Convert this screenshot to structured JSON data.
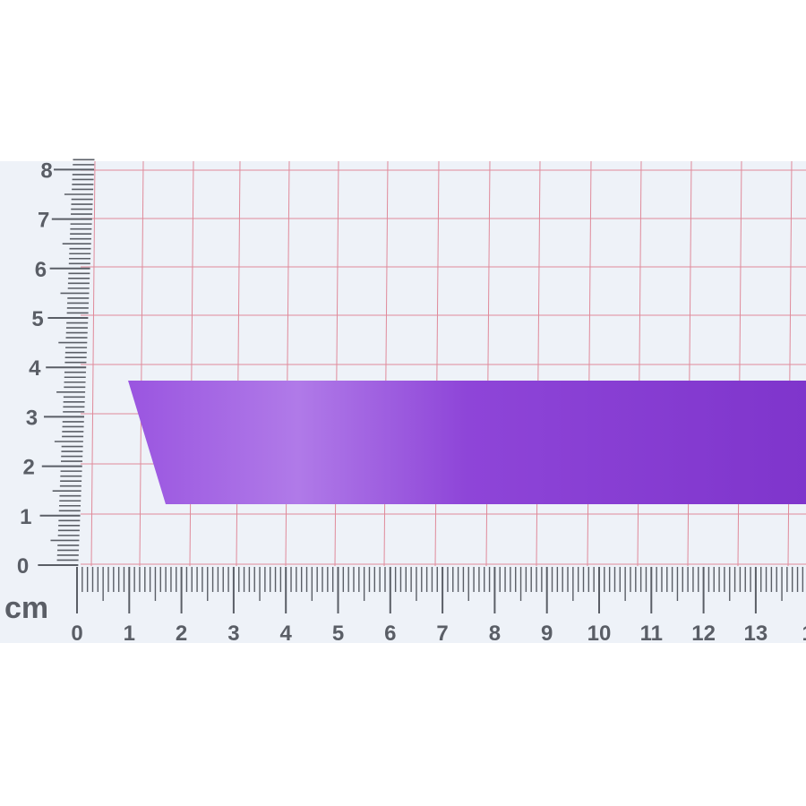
{
  "ruler": {
    "unit_label": "cm",
    "x_labels": [
      "0",
      "1",
      "2",
      "3",
      "4",
      "5",
      "6",
      "7",
      "8",
      "9",
      "10",
      "11",
      "12",
      "13",
      "1"
    ],
    "y_labels": [
      "0",
      "1",
      "2",
      "3",
      "4",
      "5",
      "6",
      "7",
      "8"
    ]
  },
  "colors": {
    "background": "#eef2f8",
    "grid_line": "#e08a9a",
    "ruler_ink": "#5a5e66",
    "ribbon": "#8a3fd6",
    "ribbon_highlight": "#b07ae8"
  },
  "subject": {
    "item": "ribbon",
    "width_cm": 2.5
  }
}
